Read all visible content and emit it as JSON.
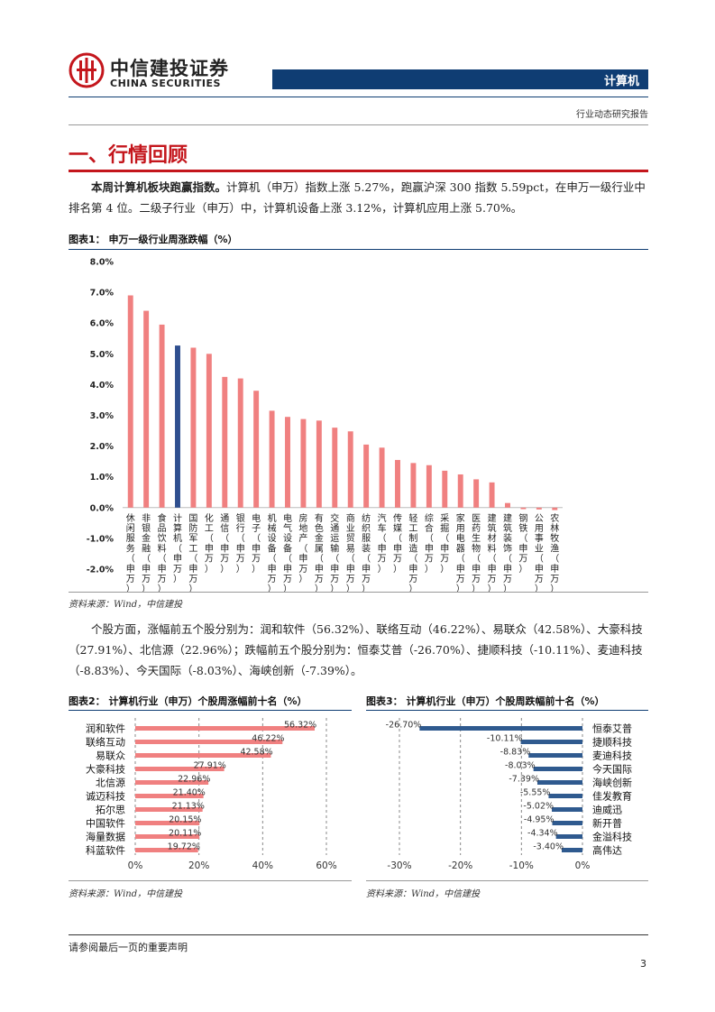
{
  "header": {
    "brand_cn": "中信建投证券",
    "brand_en": "CHINA SECURITIES",
    "section": "计算机",
    "report_type": "行业动态研究报告",
    "colors": {
      "navy": "#0f3d73",
      "red": "#c4161c"
    }
  },
  "section_heading": "一、行情回顾",
  "para1": {
    "lead": "本周计算机板块跑赢指数。",
    "text": "计算机（申万）指数上涨 5.27%，跑赢沪深 300 指数 5.59pct，在申万一级行业中排名第 4 位。二级子行业（申万）中，计算机设备上涨 3.12%，计算机应用上涨 5.70%。"
  },
  "figure1": {
    "title": "图表1：  申万一级行业周涨跌幅（%）",
    "source": "资料来源：Wind，中信建投",
    "chart_data": {
      "type": "bar",
      "title": "申万一级行业周涨跌幅（%）",
      "categories": [
        "休闲服务(申万)",
        "非银金融(申万)",
        "食品饮料(申万)",
        "计算机(申万)",
        "国防军工(申万)",
        "化工(申万)",
        "通信(申万)",
        "银行(申万)",
        "电子(申万)",
        "机械设备(申万)",
        "电气设备(申万)",
        "房地产(申万)",
        "有色金属(申万)",
        "交通运输(申万)",
        "商业贸易(申万)",
        "纺织服装(申万)",
        "汽车(申万)",
        "传媒(申万)",
        "轻工制造(申万)",
        "综合(申万)",
        "采掘(申万)",
        "家用电器(申万)",
        "医药生物(申万)",
        "建筑材料(申万)",
        "建筑装饰(申万)",
        "钢铁(申万)",
        "公用事业(申万)",
        "农林牧渔(申万)"
      ],
      "values": [
        6.9,
        6.4,
        5.95,
        5.27,
        5.2,
        5.0,
        4.25,
        4.2,
        3.8,
        3.15,
        2.95,
        2.88,
        2.83,
        2.6,
        2.48,
        2.05,
        1.95,
        1.55,
        1.45,
        1.38,
        1.2,
        1.08,
        0.92,
        0.82,
        0.15,
        -0.05,
        -0.06,
        -0.08
      ],
      "highlight": "计算机(申万)",
      "ylim": [
        -2.0,
        8.0
      ],
      "yticks": [
        "8.0%",
        "7.0%",
        "6.0%",
        "5.0%",
        "4.0%",
        "3.0%",
        "2.0%",
        "1.0%",
        "0.0%",
        "-1.0%",
        "-2.0%"
      ],
      "bar_color": "#f08080",
      "highlight_color": "#2f4f8f"
    }
  },
  "para2": {
    "text": "个股方面，涨幅前五个股分别为：润和软件（56.32%）、联络互动（46.22%）、易联众（42.58%）、大豪科技（27.91%）、北信源（22.96%）；跌幅前五个股分别为：恒泰艾普（-26.70%）、捷顺科技（-10.11%）、麦迪科技（-8.83%）、今天国际（-8.03%）、海峡创新（-7.39%）。"
  },
  "figure2": {
    "title": "图表2：  计算机行业（申万）个股周涨幅前十名（%）",
    "source": "资料来源：Wind，中信建投",
    "chart_data": {
      "type": "bar",
      "orientation": "horizontal",
      "title": "计算机行业（申万）个股周涨幅前十名（%）",
      "categories": [
        "润和软件",
        "联络互动",
        "易联众",
        "大豪科技",
        "北信源",
        "诚迈科技",
        "拓尔思",
        "中国软件",
        "海量数据",
        "科蓝软件"
      ],
      "values": [
        56.32,
        46.22,
        42.58,
        27.91,
        22.96,
        21.4,
        21.13,
        20.15,
        20.11,
        19.72
      ],
      "labels": [
        "56.32%",
        "46.22%",
        "42.58%",
        "27.91%",
        "22.96%",
        "21.40%",
        "21.13%",
        "20.15%",
        "20.11%",
        "19.72%"
      ],
      "xlim": [
        0,
        60
      ],
      "xticks": [
        "0%",
        "20%",
        "40%",
        "60%"
      ],
      "bar_color": "#f08080"
    }
  },
  "figure3": {
    "title": "图表3：  计算机行业（申万）个股周跌幅前十名（%）",
    "source": "资料来源：Wind，中信建投",
    "chart_data": {
      "type": "bar",
      "orientation": "horizontal",
      "title": "计算机行业（申万）个股周跌幅前十名（%）",
      "categories": [
        "恒泰艾普",
        "捷顺科技",
        "麦迪科技",
        "今天国际",
        "海峡创新",
        "佳发教育",
        "迪威迅",
        "新开普",
        "金溢科技",
        "高伟达"
      ],
      "values": [
        -26.7,
        -10.11,
        -8.83,
        -8.03,
        -7.39,
        -5.55,
        -5.02,
        -4.95,
        -4.34,
        -3.4
      ],
      "labels": [
        "-26.70%",
        "-10.11%",
        "-8.83%",
        "-8.03%",
        "-7.39%",
        "-5.55%",
        "-5.02%",
        "-4.95%",
        "-4.34%",
        "-3.40%"
      ],
      "xlim": [
        -30,
        0
      ],
      "xticks": [
        "-30%",
        "-20%",
        "-10%",
        "0%"
      ],
      "bar_color": "#2f5a8f"
    }
  },
  "footer": {
    "disclaimer": "请参阅最后一页的重要声明",
    "page_number": "3"
  }
}
